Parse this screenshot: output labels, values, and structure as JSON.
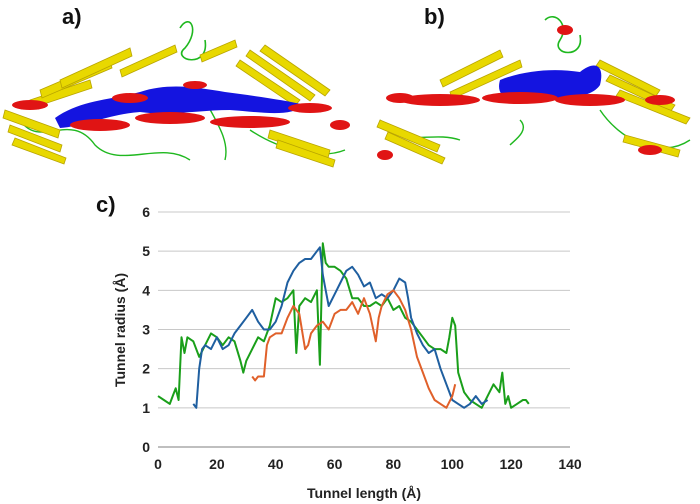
{
  "panels": {
    "a": "a)",
    "b": "b)",
    "c": "c)"
  },
  "structures": [
    {
      "name": "protein-structure-a",
      "tunnel_color": "#1414e0",
      "helix_color": "#e01414",
      "sheet_color": "#e8d800",
      "loop_color": "#1fb81f"
    },
    {
      "name": "protein-structure-b",
      "tunnel_color": "#1414e0",
      "helix_color": "#e01414",
      "sheet_color": "#e8d800",
      "loop_color": "#1fb81f"
    }
  ],
  "chart_data": {
    "type": "line",
    "title": "",
    "xlabel": "Tunnel length (Å)",
    "ylabel": "Tunnel radius (Å)",
    "xlim": [
      0,
      140
    ],
    "ylim": [
      0,
      6
    ],
    "xticks": [
      "0",
      "20",
      "40",
      "60",
      "80",
      "100",
      "120",
      "140"
    ],
    "yticks": [
      "0",
      "1",
      "2",
      "3",
      "4",
      "5",
      "6"
    ],
    "grid": "horizontal",
    "legend": "none",
    "series": [
      {
        "color": "#1a9f1a",
        "points": [
          [
            0,
            1.3
          ],
          [
            2,
            1.2
          ],
          [
            4,
            1.1
          ],
          [
            5,
            1.3
          ],
          [
            6,
            1.5
          ],
          [
            7,
            1.2
          ],
          [
            8,
            2.8
          ],
          [
            9,
            2.4
          ],
          [
            10,
            2.8
          ],
          [
            12,
            2.7
          ],
          [
            14,
            2.3
          ],
          [
            16,
            2.6
          ],
          [
            18,
            2.9
          ],
          [
            20,
            2.8
          ],
          [
            22,
            2.6
          ],
          [
            24,
            2.8
          ],
          [
            26,
            2.7
          ],
          [
            28,
            2.2
          ],
          [
            29,
            1.9
          ],
          [
            30,
            2.2
          ],
          [
            32,
            2.5
          ],
          [
            34,
            2.8
          ],
          [
            36,
            2.7
          ],
          [
            38,
            3.1
          ],
          [
            40,
            3.8
          ],
          [
            42,
            3.7
          ],
          [
            44,
            3.8
          ],
          [
            46,
            4.0
          ],
          [
            47,
            2.4
          ],
          [
            48,
            3.6
          ],
          [
            50,
            3.8
          ],
          [
            52,
            3.7
          ],
          [
            54,
            4.0
          ],
          [
            55,
            2.1
          ],
          [
            56,
            5.2
          ],
          [
            57,
            4.7
          ],
          [
            58,
            4.6
          ],
          [
            60,
            4.6
          ],
          [
            62,
            4.5
          ],
          [
            64,
            4.3
          ],
          [
            66,
            3.8
          ],
          [
            68,
            3.8
          ],
          [
            70,
            3.6
          ],
          [
            72,
            3.6
          ],
          [
            74,
            3.7
          ],
          [
            76,
            3.6
          ],
          [
            78,
            3.8
          ],
          [
            80,
            3.5
          ],
          [
            82,
            3.6
          ],
          [
            84,
            3.3
          ],
          [
            86,
            3.2
          ],
          [
            88,
            3.0
          ],
          [
            90,
            2.8
          ],
          [
            92,
            2.6
          ],
          [
            94,
            2.5
          ],
          [
            96,
            2.5
          ],
          [
            98,
            2.4
          ],
          [
            99,
            2.8
          ],
          [
            100,
            3.3
          ],
          [
            101,
            3.1
          ],
          [
            102,
            1.9
          ],
          [
            104,
            1.4
          ],
          [
            106,
            1.2
          ],
          [
            108,
            1.1
          ],
          [
            110,
            1.0
          ],
          [
            112,
            1.3
          ],
          [
            114,
            1.6
          ],
          [
            116,
            1.4
          ],
          [
            117,
            1.9
          ],
          [
            118,
            1.1
          ],
          [
            119,
            1.3
          ],
          [
            120,
            1.0
          ],
          [
            122,
            1.1
          ],
          [
            124,
            1.2
          ],
          [
            125,
            1.2
          ],
          [
            126,
            1.1
          ]
        ]
      },
      {
        "color": "#1f5fa0",
        "points": [
          [
            12,
            1.1
          ],
          [
            13,
            1.0
          ],
          [
            14,
            2.0
          ],
          [
            15,
            2.5
          ],
          [
            16,
            2.6
          ],
          [
            18,
            2.5
          ],
          [
            20,
            2.8
          ],
          [
            22,
            2.5
          ],
          [
            24,
            2.6
          ],
          [
            26,
            2.9
          ],
          [
            28,
            3.1
          ],
          [
            30,
            3.3
          ],
          [
            32,
            3.5
          ],
          [
            34,
            3.2
          ],
          [
            36,
            3.0
          ],
          [
            38,
            3.0
          ],
          [
            40,
            3.2
          ],
          [
            42,
            3.6
          ],
          [
            44,
            4.2
          ],
          [
            46,
            4.5
          ],
          [
            48,
            4.7
          ],
          [
            50,
            4.8
          ],
          [
            52,
            4.8
          ],
          [
            54,
            5.0
          ],
          [
            55,
            5.1
          ],
          [
            56,
            4.4
          ],
          [
            57,
            4.0
          ],
          [
            58,
            3.6
          ],
          [
            60,
            3.9
          ],
          [
            62,
            4.2
          ],
          [
            64,
            4.5
          ],
          [
            66,
            4.6
          ],
          [
            68,
            4.4
          ],
          [
            70,
            4.1
          ],
          [
            72,
            4.2
          ],
          [
            74,
            3.8
          ],
          [
            76,
            3.9
          ],
          [
            78,
            3.8
          ],
          [
            80,
            4.0
          ],
          [
            82,
            4.3
          ],
          [
            84,
            4.2
          ],
          [
            85,
            3.8
          ],
          [
            86,
            3.3
          ],
          [
            88,
            2.9
          ],
          [
            90,
            2.6
          ],
          [
            92,
            2.4
          ],
          [
            94,
            2.5
          ],
          [
            96,
            2.0
          ],
          [
            98,
            1.6
          ],
          [
            100,
            1.2
          ],
          [
            102,
            1.1
          ],
          [
            104,
            1.0
          ],
          [
            106,
            1.1
          ],
          [
            108,
            1.3
          ],
          [
            110,
            1.1
          ],
          [
            112,
            1.2
          ]
        ]
      },
      {
        "color": "#e0602a",
        "points": [
          [
            32,
            1.8
          ],
          [
            33,
            1.7
          ],
          [
            34,
            1.8
          ],
          [
            36,
            1.8
          ],
          [
            37,
            2.6
          ],
          [
            38,
            2.8
          ],
          [
            40,
            2.9
          ],
          [
            42,
            2.9
          ],
          [
            44,
            3.3
          ],
          [
            46,
            3.6
          ],
          [
            48,
            3.4
          ],
          [
            50,
            2.5
          ],
          [
            51,
            2.6
          ],
          [
            52,
            2.9
          ],
          [
            54,
            3.1
          ],
          [
            56,
            3.2
          ],
          [
            58,
            3.0
          ],
          [
            60,
            3.4
          ],
          [
            62,
            3.5
          ],
          [
            64,
            3.5
          ],
          [
            66,
            3.7
          ],
          [
            68,
            3.4
          ],
          [
            70,
            3.8
          ],
          [
            72,
            3.4
          ],
          [
            74,
            2.7
          ],
          [
            75,
            3.3
          ],
          [
            76,
            3.6
          ],
          [
            78,
            3.9
          ],
          [
            80,
            4.0
          ],
          [
            82,
            3.8
          ],
          [
            84,
            3.5
          ],
          [
            86,
            3.0
          ],
          [
            88,
            2.3
          ],
          [
            90,
            1.9
          ],
          [
            92,
            1.5
          ],
          [
            94,
            1.2
          ],
          [
            96,
            1.1
          ],
          [
            98,
            1.0
          ],
          [
            100,
            1.3
          ],
          [
            101,
            1.6
          ]
        ]
      }
    ]
  }
}
